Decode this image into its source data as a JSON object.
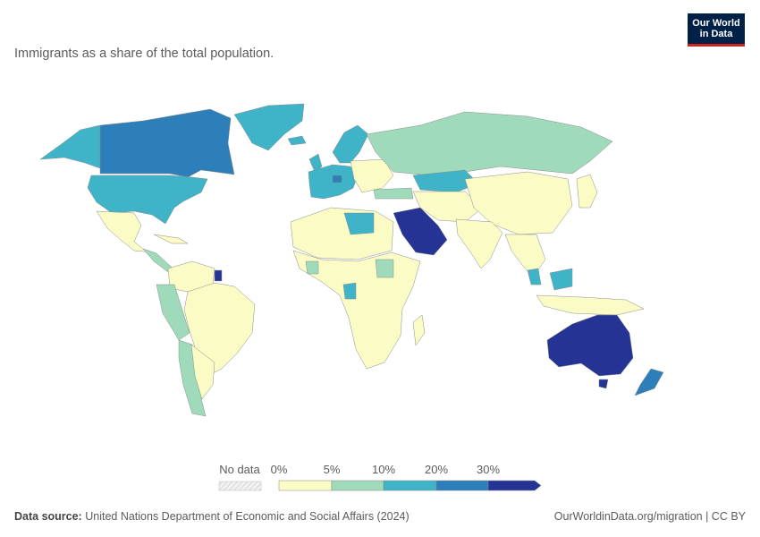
{
  "header": {
    "subtitle": "Immigrants as a share of the total population.",
    "logo_line1": "Our World",
    "logo_line2": "in Data"
  },
  "colors": {
    "no_data": "#e9e9e9",
    "bin_0_5": "#fbfbc6",
    "bin_5_10": "#9fdbba",
    "bin_10_20": "#3fb3c8",
    "bin_20_30": "#2c7fb8",
    "bin_30_plus": "#253494",
    "border": "#8c8c8c",
    "logo_bg": "#002147",
    "logo_accent": "#ce261e"
  },
  "legend": {
    "no_data_label": "No data",
    "ticks": [
      "0%",
      "5%",
      "10%",
      "20%",
      "30%"
    ]
  },
  "footer": {
    "source_prefix": "Data source:",
    "source_text": "United Nations Department of Economic and Social Affairs (2024)",
    "url": "OurWorldinData.org/migration | CC BY"
  }
}
